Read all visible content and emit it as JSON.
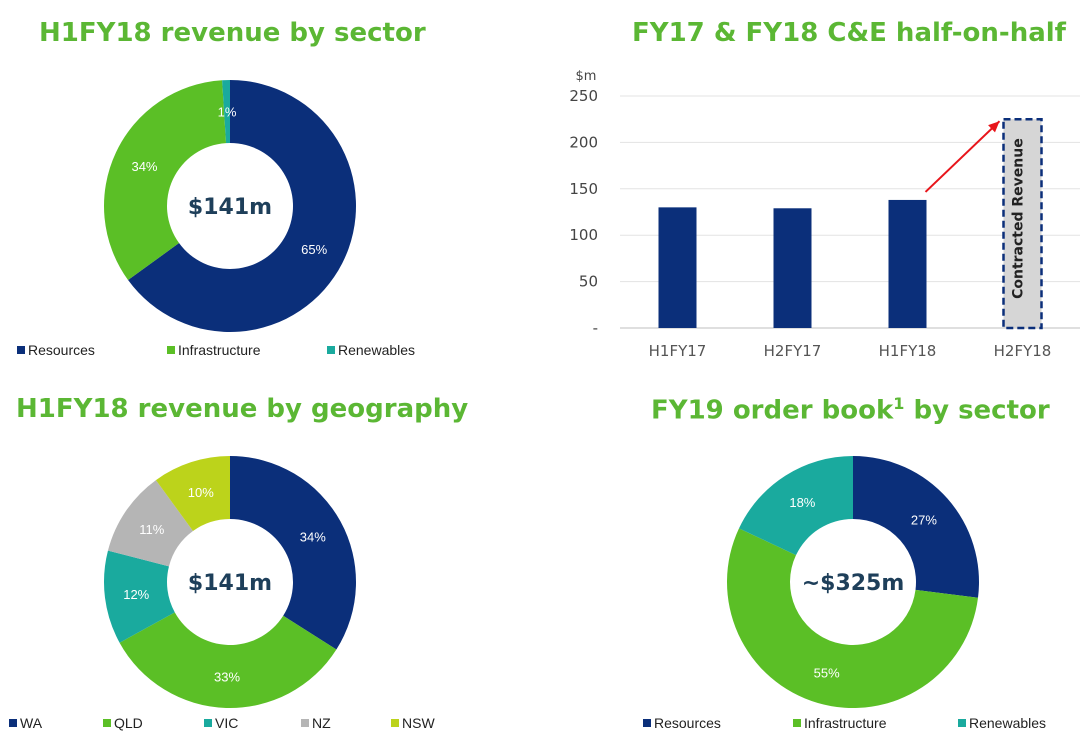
{
  "chart_data": [
    {
      "id": "sector",
      "type": "pie",
      "title": "H1FY18 revenue by sector",
      "center_label": "$141m",
      "slices": [
        {
          "label": "Resources",
          "value": 65,
          "display": "65%",
          "color": "#0b2f7a"
        },
        {
          "label": "Infrastructure",
          "value": 34,
          "display": "34%",
          "color": "#5bbf26"
        },
        {
          "label": "Renewables",
          "value": 1,
          "display": "1%",
          "color": "#1aaa9e"
        }
      ]
    },
    {
      "id": "halfonhalf",
      "type": "bar",
      "title": "FY17 & FY18 C&E half-on-half",
      "ylabel": "$m",
      "ylim": [
        0,
        250
      ],
      "yticks": [
        {
          "value": 0,
          "label": "-"
        },
        {
          "value": 50,
          "label": "50"
        },
        {
          "value": 100,
          "label": "100"
        },
        {
          "value": 150,
          "label": "150"
        },
        {
          "value": 200,
          "label": "200"
        },
        {
          "value": 250,
          "label": "250"
        }
      ],
      "categories": [
        "H1FY17",
        "H2FY17",
        "H1FY18",
        "H2FY18"
      ],
      "values": [
        130,
        129,
        138,
        null
      ],
      "bar_color": "#0b2f7a",
      "grid": true,
      "annotation": {
        "label": "Contracted Revenue",
        "category": "H2FY18",
        "top_value": 225,
        "arrow_from": "H1FY18",
        "arrow_to_value": 225,
        "arrow_color": "#e8151b"
      }
    },
    {
      "id": "geography",
      "type": "pie",
      "title": "H1FY18 revenue by geography",
      "center_label": "$141m",
      "slices": [
        {
          "label": "WA",
          "value": 34,
          "display": "34%",
          "color": "#0b2f7a"
        },
        {
          "label": "QLD",
          "value": 33,
          "display": "33%",
          "color": "#5bbf26"
        },
        {
          "label": "VIC",
          "value": 12,
          "display": "12%",
          "color": "#1aaa9e"
        },
        {
          "label": "NZ",
          "value": 11,
          "display": "11%",
          "color": "#b5b5b5"
        },
        {
          "label": "NSW",
          "value": 10,
          "display": "10%",
          "color": "#bcd31b"
        }
      ]
    },
    {
      "id": "orderbook",
      "type": "pie",
      "title": "FY19 order book",
      "title_sup": "1",
      "title_suffix": " by sector",
      "center_label": "~$325m",
      "slices": [
        {
          "label": "Resources",
          "value": 27,
          "display": "27%",
          "color": "#0b2f7a"
        },
        {
          "label": "Infrastructure",
          "value": 55,
          "display": "55%",
          "color": "#5bbf26"
        },
        {
          "label": "Renewables",
          "value": 18,
          "display": "18%",
          "color": "#1aaa9e"
        }
      ]
    }
  ]
}
